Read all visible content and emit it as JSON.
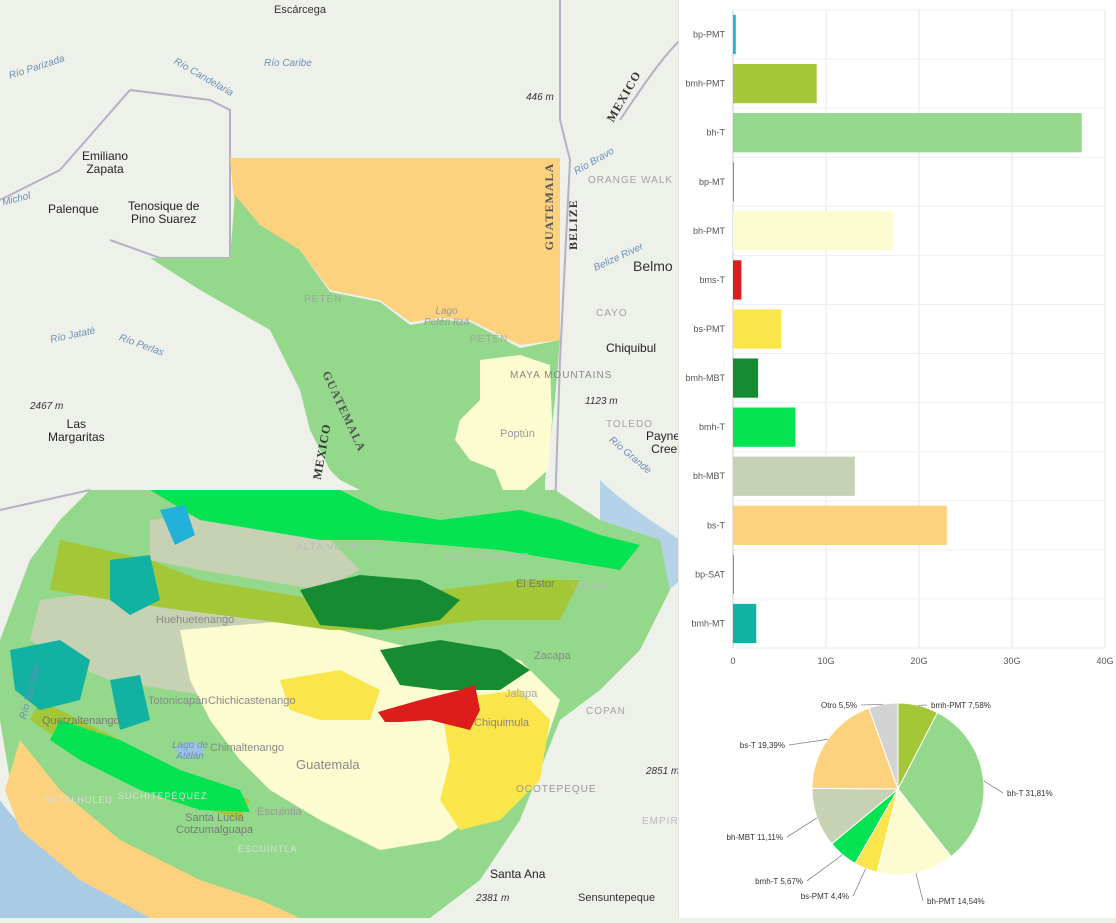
{
  "map": {
    "labels": {
      "escarcega": "Escárcega",
      "rio_parizada": "Río Parizada",
      "rio_candelaria": "Río Candelaria",
      "rio_caribe": "Río Caribe",
      "elev_446": "446 m",
      "mexico_ne": "MEXICO",
      "emiliano_zapata": "Emiliano\nZapata",
      "michol": "Michol",
      "palenque": "Palenque",
      "tenosique": "Tenosique de\nPino Suarez",
      "rio_bravo": "Río Bravo",
      "orange_walk": "ORANGE WALK",
      "belize": "BELIZE",
      "guatemala_ne": "GUATEMALA",
      "belize_river": "Belize River",
      "belmo": "Belmo",
      "peten_lower": "PETÉN",
      "lago_peten_itza": "Lago\nPetén Itzá",
      "peten_upper": "PETÉN",
      "cayo": "CAYO",
      "rio_jatate": "Río Jataté",
      "rio_perlas": "Río Perlas",
      "chiquibul": "Chiquibul",
      "maya_mountains": "MAYA MOUNTAINS",
      "guatemala_border": "GUATEMALA",
      "elev_2467": "2467 m",
      "las_margaritas": "Las\nMargaritas",
      "elev_1123": "1123 m",
      "toledo": "TOLEDO",
      "poptun": "Poptún",
      "paynes_creek": "Payne's\nCreek",
      "mexico_w": "MEXICO",
      "rio_grande": "Río Grande",
      "alta_verapaz": "ALTA VERAPAZ",
      "baja_verapaz": "BAJA VERAPAZ",
      "el_estor": "El Estor",
      "izabal": "IZABAL",
      "huehuetenango": "Huehuetenango",
      "rio_suchiate": "Río Suchiate",
      "zacapa": "Zacapa",
      "totonicapan": "Totonicapán",
      "chichicastenango": "Chichicastenango",
      "chiquimula": "Chiquimula",
      "jalapa": "Jalapa",
      "copan": "COPAN",
      "quetzaltenango": "Quetzaltenango",
      "lago_atitlan": "Lago de\nAtitlán",
      "chimaltenango": "Chimaltenango",
      "guatemala_city": "Guatemala",
      "elev_2851": "2851 m",
      "retalhuleu": "RETALHULEU",
      "suchitepequez": "SUCHITEPÉQUEZ",
      "escuintla_city": "Escuintla",
      "santa_lucia": "Santa Lucía\nCotzumalguapa",
      "ocotepeque": "OCOTEPEQUE",
      "empira": "EMPIRA",
      "escuintla_dept": "ESCUINTLA",
      "santa_ana": "Santa Ana",
      "elev_2381": "2381 m",
      "sensuntepeque": "Sensuntepeque"
    }
  },
  "chart_data": [
    {
      "type": "bar",
      "orientation": "horizontal",
      "categories": [
        "bp-PMT",
        "bmh-PMT",
        "bh-T",
        "bp-MT",
        "bh-PMT",
        "bms-T",
        "bs-PMT",
        "bmh-MBT",
        "bmh-T",
        "bh-MBT",
        "bs-T",
        "bp-SAT",
        "bmh-MT"
      ],
      "values": [
        0.3,
        9.0,
        37.5,
        0.1,
        17.2,
        0.9,
        5.2,
        2.7,
        6.7,
        13.1,
        23.0,
        0.05,
        2.5
      ],
      "colors": [
        "#21b1d9",
        "#a3c737",
        "#94d88c",
        "#21b1d9",
        "#fdfcd1",
        "#dd1c1c",
        "#fae54b",
        "#168b32",
        "#05e252",
        "#c7d2b4",
        "#fcd27e",
        "#21b1d9",
        "#12b2a2"
      ],
      "xlim": [
        0,
        40
      ],
      "xticks": [
        "0",
        "10G",
        "20G",
        "30G",
        "40G"
      ],
      "grid": true
    },
    {
      "type": "pie",
      "slices": [
        {
          "label": "bmh-PMT 7,58%",
          "value": 7.58,
          "color": "#a3c737"
        },
        {
          "label": "bh-T 31,81%",
          "value": 31.81,
          "color": "#94d88c"
        },
        {
          "label": "bh-PMT 14,54%",
          "value": 14.54,
          "color": "#fdfcd1"
        },
        {
          "label": "bs-PMT 4,4%",
          "value": 4.4,
          "color": "#fae54b"
        },
        {
          "label": "bmh-T 5,67%",
          "value": 5.67,
          "color": "#05e252"
        },
        {
          "label": "bh-MBT 11,11%",
          "value": 11.11,
          "color": "#c7d2b4"
        },
        {
          "label": "bs-T 19,39%",
          "value": 19.39,
          "color": "#fcd27e"
        },
        {
          "label": "Otro 5,5%",
          "value": 5.5,
          "color": "#d3d3d3"
        }
      ]
    }
  ]
}
